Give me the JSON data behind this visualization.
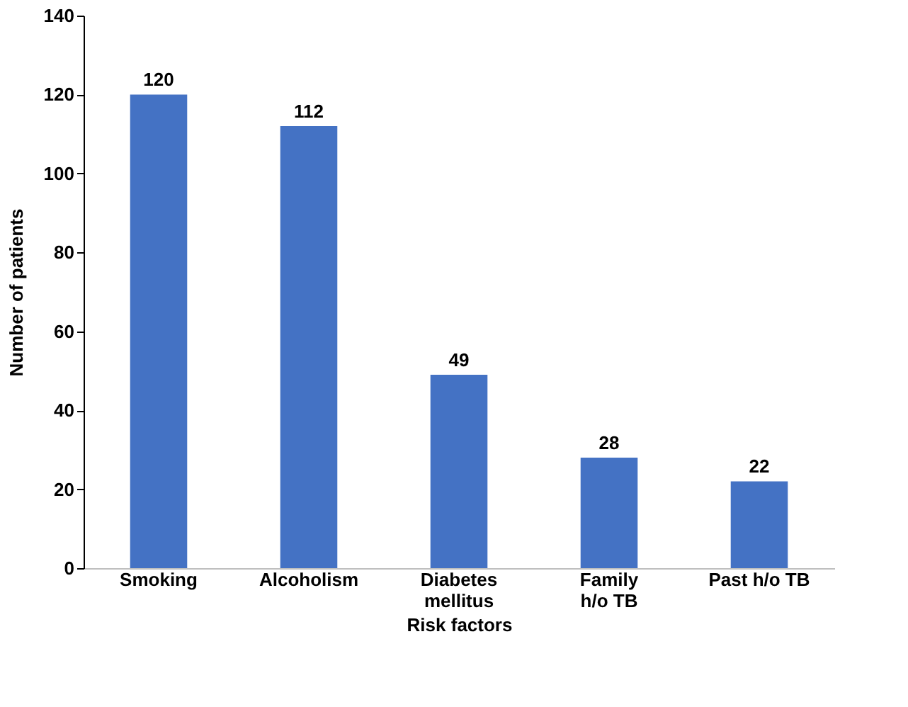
{
  "chart_data": {
    "type": "bar",
    "xlabel": "Risk factors",
    "ylabel": "Number of patients",
    "categories": [
      "Smoking",
      "Alcoholism",
      "Diabetes mellitus",
      "Family h/o TB",
      "Past h/o TB"
    ],
    "values": [
      120,
      112,
      49,
      28,
      22
    ],
    "color": "#4472c4",
    "ylim": [
      0,
      140
    ],
    "yticks": [
      0,
      20,
      40,
      60,
      80,
      100,
      120,
      140
    ],
    "grid": false,
    "data_labels": true
  }
}
